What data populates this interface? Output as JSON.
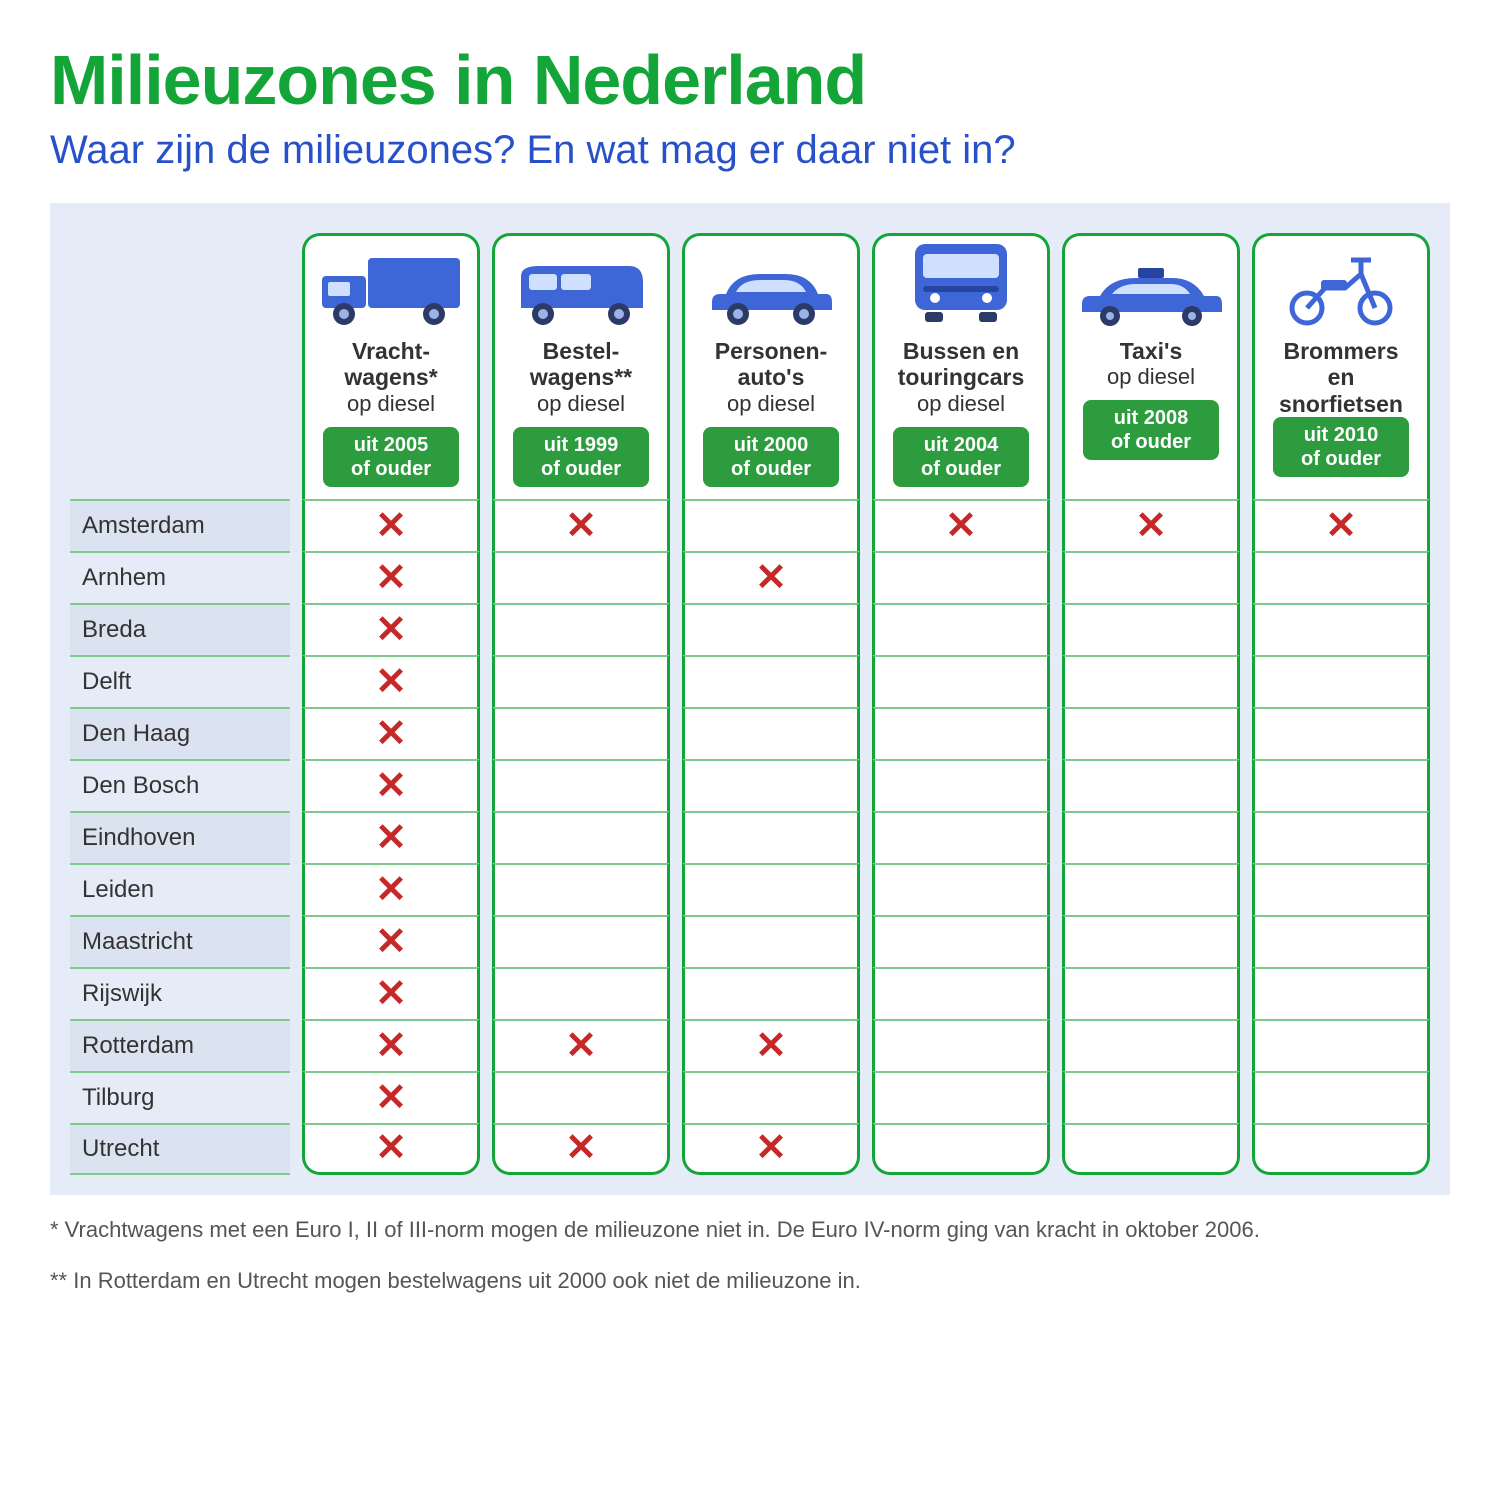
{
  "colors": {
    "title": "#13a538",
    "subtitle": "#2851c9",
    "panel_bg": "#e6ecf7",
    "border": "#13a538",
    "badge_bg": "#2d9c3f",
    "rowline": "#7fc98c",
    "x": "#c62828",
    "vehicle_fill": "#3e66d6",
    "vehicle_dark": "#2745a0",
    "wheel": "#2b3a67"
  },
  "title": "Milieuzones in Nederland",
  "subtitle": "Waar zijn de milieuzones? En wat mag er daar niet in?",
  "columns": [
    {
      "id": "vracht",
      "label_bold": "Vracht-\nwagens*",
      "label_sub": "op diesel",
      "badge": "uit 2005\nof ouder",
      "icon": "truck"
    },
    {
      "id": "bestel",
      "label_bold": "Bestel-\nwagens**",
      "label_sub": "op diesel",
      "badge": "uit 1999\nof ouder",
      "icon": "van"
    },
    {
      "id": "personen",
      "label_bold": "Personen-\nauto's",
      "label_sub": "op diesel",
      "badge": "uit 2000\nof ouder",
      "icon": "car"
    },
    {
      "id": "bussen",
      "label_bold": "Bussen en\ntouringcars",
      "label_sub": "op diesel",
      "badge": "uit 2004\nof ouder",
      "icon": "bus"
    },
    {
      "id": "taxi",
      "label_bold": "Taxi's",
      "label_sub": "op diesel",
      "badge": "uit 2008\nof ouder",
      "icon": "taxi"
    },
    {
      "id": "brommer",
      "label_bold": "Brommers\nen\nsnorfietsen",
      "label_sub": "",
      "badge": "uit 2010\nof ouder",
      "icon": "moped"
    }
  ],
  "rows": [
    {
      "city": "Amsterdam",
      "x": [
        true,
        true,
        false,
        true,
        true,
        true
      ]
    },
    {
      "city": "Arnhem",
      "x": [
        true,
        false,
        true,
        false,
        false,
        false
      ]
    },
    {
      "city": "Breda",
      "x": [
        true,
        false,
        false,
        false,
        false,
        false
      ]
    },
    {
      "city": "Delft",
      "x": [
        true,
        false,
        false,
        false,
        false,
        false
      ]
    },
    {
      "city": "Den Haag",
      "x": [
        true,
        false,
        false,
        false,
        false,
        false
      ]
    },
    {
      "city": "Den Bosch",
      "x": [
        true,
        false,
        false,
        false,
        false,
        false
      ]
    },
    {
      "city": "Eindhoven",
      "x": [
        true,
        false,
        false,
        false,
        false,
        false
      ]
    },
    {
      "city": "Leiden",
      "x": [
        true,
        false,
        false,
        false,
        false,
        false
      ]
    },
    {
      "city": "Maastricht",
      "x": [
        true,
        false,
        false,
        false,
        false,
        false
      ]
    },
    {
      "city": "Rijswijk",
      "x": [
        true,
        false,
        false,
        false,
        false,
        false
      ]
    },
    {
      "city": "Rotterdam",
      "x": [
        true,
        true,
        true,
        false,
        false,
        false
      ]
    },
    {
      "city": "Tilburg",
      "x": [
        true,
        false,
        false,
        false,
        false,
        false
      ]
    },
    {
      "city": "Utrecht",
      "x": [
        true,
        true,
        true,
        false,
        false,
        false
      ]
    }
  ],
  "footnotes": [
    "* Vrachtwagens met een Euro I, II of III-norm mogen de milieuzone niet in. De Euro IV-norm ging van kracht in oktober 2006.",
    "** In Rotterdam en Utrecht mogen bestelwagens uit 2000 ook niet de milieuzone in."
  ]
}
